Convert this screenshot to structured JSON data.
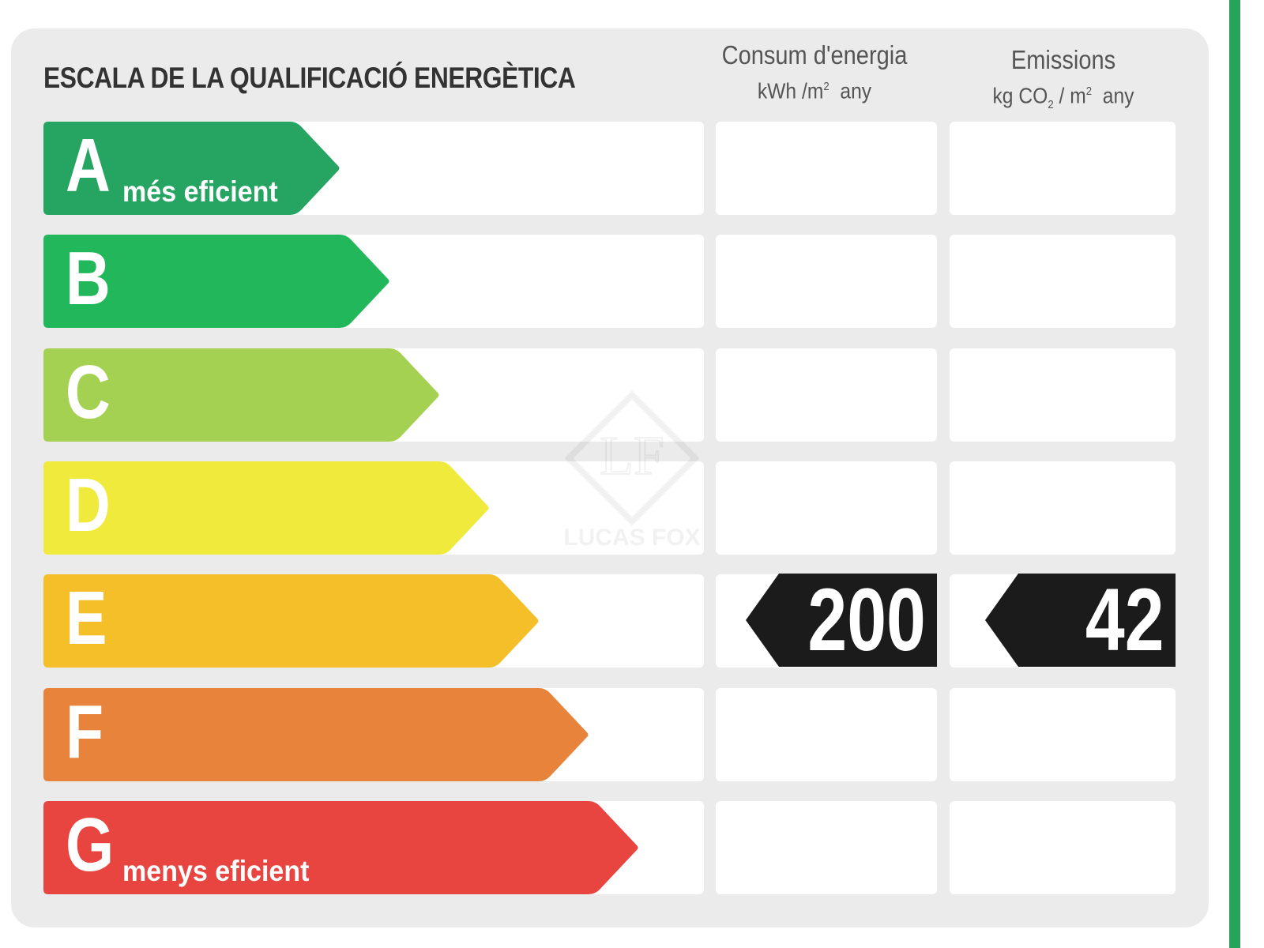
{
  "title": "ESCALA DE LA QUALIFICACIÓ ENERGÈTICA",
  "columns": {
    "consumption": {
      "heading": "Consum d'energia",
      "unit_prefix": "kWh /m",
      "unit_sup": "2",
      "unit_suffix": "any"
    },
    "emissions": {
      "heading": "Emissions",
      "unit_prefix": "kg CO",
      "unit_sub": "2",
      "unit_mid": " / m",
      "unit_sup": "2",
      "unit_suffix": "any"
    }
  },
  "ratings": [
    {
      "letter": "A",
      "caption": "més eficient",
      "color": "#25a462"
    },
    {
      "letter": "B",
      "caption": "",
      "color": "#22b75a"
    },
    {
      "letter": "C",
      "caption": "",
      "color": "#a5d152"
    },
    {
      "letter": "D",
      "caption": "",
      "color": "#efea3b"
    },
    {
      "letter": "E",
      "caption": "",
      "color": "#f4bf29"
    },
    {
      "letter": "F",
      "caption": "",
      "color": "#e8833c"
    },
    {
      "letter": "G",
      "caption": "menys eficient",
      "color": "#e84540"
    }
  ],
  "result": {
    "rating": "E",
    "consumption_value": "200",
    "emissions_value": "42",
    "badge_color": "#1b1b1b"
  },
  "watermark": {
    "text": "LUCAS FOX",
    "logo_letters": "LF"
  }
}
